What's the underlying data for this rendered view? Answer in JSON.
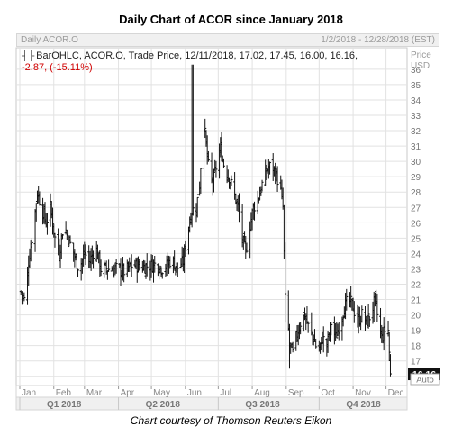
{
  "header": {
    "title": "Daily Chart of ACOR since January 2018",
    "instrument": "Daily ACOR.O",
    "date_range": "1/2/2018 - 12/28/2018 (EST)"
  },
  "legend": {
    "line1": "BarOHLC, ACOR.O, Trade Price,  12/11/2018, 17.02, 17.45, 16.00, 16.16,",
    "line2": "-2.87, (-15.11%)",
    "change_color": "#d00000"
  },
  "caption": "Chart courtesy of Thomson Reuters Eikon",
  "chart_data": {
    "type": "ohlc",
    "y_axis_title": "Price\nUSD",
    "ylim": [
      15,
      37
    ],
    "yticks": [
      16,
      17,
      18,
      19,
      20,
      21,
      22,
      23,
      24,
      25,
      26,
      27,
      28,
      29,
      30,
      31,
      32,
      33,
      34,
      35,
      36
    ],
    "last_price_label": "16.16",
    "auto_label": "Auto",
    "x_range_days": [
      1,
      346
    ],
    "month_ticks": [
      {
        "label": "Jan",
        "day": 1
      },
      {
        "label": "Feb",
        "day": 32
      },
      {
        "label": "Mar",
        "day": 60
      },
      {
        "label": "Apr",
        "day": 91
      },
      {
        "label": "May",
        "day": 121
      },
      {
        "label": "Jun",
        "day": 152
      },
      {
        "label": "Jul",
        "day": 182
      },
      {
        "label": "Aug",
        "day": 213
      },
      {
        "label": "Sep",
        "day": 244
      },
      {
        "label": "Oct",
        "day": 274
      },
      {
        "label": "Nov",
        "day": 305
      },
      {
        "label": "Dec",
        "day": 335
      }
    ],
    "quarter_ticks": [
      {
        "label": "Q1 2018",
        "day": 1
      },
      {
        "label": "Q2 2018",
        "day": 91
      },
      {
        "label": "Q3 2018",
        "day": 182
      },
      {
        "label": "Q4 2018",
        "day": 274
      }
    ],
    "grid": true,
    "close_path": [
      [
        2,
        21.5
      ],
      [
        6,
        20.8
      ],
      [
        9,
        23.5
      ],
      [
        13,
        25.5
      ],
      [
        17,
        28.0
      ],
      [
        21,
        27.0
      ],
      [
        25,
        26.0
      ],
      [
        29,
        27.0
      ],
      [
        33,
        25.0
      ],
      [
        37,
        24.0
      ],
      [
        41,
        26.0
      ],
      [
        45,
        25.0
      ],
      [
        50,
        24.0
      ],
      [
        55,
        23.0
      ],
      [
        60,
        24.0
      ],
      [
        65,
        23.5
      ],
      [
        70,
        24.5
      ],
      [
        75,
        23.0
      ],
      [
        82,
        23.0
      ],
      [
        90,
        23.0
      ],
      [
        97,
        22.8
      ],
      [
        104,
        23.3
      ],
      [
        111,
        23.1
      ],
      [
        118,
        23.2
      ],
      [
        125,
        23.3
      ],
      [
        132,
        23.0
      ],
      [
        139,
        23.6
      ],
      [
        146,
        23.0
      ],
      [
        150,
        23.5
      ],
      [
        154,
        25.5
      ],
      [
        158,
        26.8
      ],
      [
        162,
        27.0
      ],
      [
        165,
        28.5
      ],
      [
        167,
        31.0
      ],
      [
        169,
        32.5
      ],
      [
        171,
        31.0
      ],
      [
        174,
        29.0
      ],
      [
        177,
        28.5
      ],
      [
        181,
        30.0
      ],
      [
        184,
        30.8
      ],
      [
        188,
        29.5
      ],
      [
        192,
        29.0
      ],
      [
        196,
        28.0
      ],
      [
        200,
        27.0
      ],
      [
        204,
        25.0
      ],
      [
        207,
        24.0
      ],
      [
        210,
        25.5
      ],
      [
        214,
        27.0
      ],
      [
        218,
        27.5
      ],
      [
        222,
        28.5
      ],
      [
        227,
        29.5
      ],
      [
        231,
        29.8
      ],
      [
        235,
        29.0
      ],
      [
        238,
        28.5
      ],
      [
        241,
        27.0
      ],
      [
        243,
        21.0
      ],
      [
        245,
        20.0
      ],
      [
        247,
        18.0
      ],
      [
        250,
        17.5
      ],
      [
        253,
        18.5
      ],
      [
        257,
        19.5
      ],
      [
        261,
        20.0
      ],
      [
        265,
        19.0
      ],
      [
        269,
        18.5
      ],
      [
        273,
        17.5
      ],
      [
        277,
        18.5
      ],
      [
        281,
        18.0
      ],
      [
        285,
        19.5
      ],
      [
        289,
        18.5
      ],
      [
        293,
        19.5
      ],
      [
        297,
        20.5
      ],
      [
        301,
        21.0
      ],
      [
        305,
        20.5
      ],
      [
        309,
        19.5
      ],
      [
        313,
        20.0
      ],
      [
        317,
        19.5
      ],
      [
        321,
        20.0
      ],
      [
        325,
        21.0
      ],
      [
        328,
        19.5
      ],
      [
        331,
        18.5
      ],
      [
        334,
        19.0
      ],
      [
        337,
        19.0
      ],
      [
        339,
        16.16
      ]
    ],
    "last_bar": {
      "date": "12/11/2018",
      "open": 17.02,
      "high": 17.45,
      "low": 16.0,
      "close": 16.16
    }
  }
}
